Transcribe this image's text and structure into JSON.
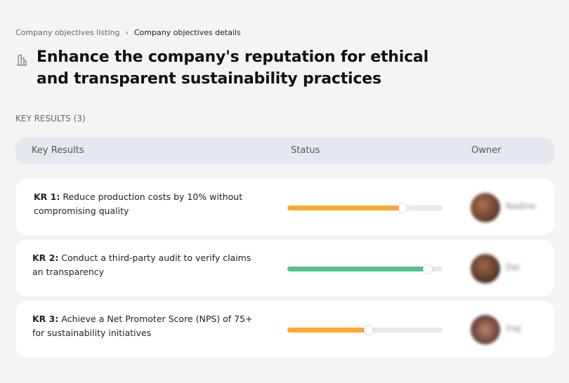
{
  "breadcrumb": {
    "parent": "Company objectives listing",
    "separator": "›",
    "current": "Company objectives details"
  },
  "title": "Enhance the company's reputation for ethical and transparent sustainability practices",
  "title_icon": "buildings-icon",
  "key_results_label": "KEY RESULTS (3)",
  "table": {
    "headers": [
      "Key Results",
      "Status",
      "Owner"
    ]
  },
  "colors": {
    "orange": "#FFA733",
    "green": "#55C58D"
  },
  "rows": [
    {
      "id": "KR 1:",
      "text": "Reduce production costs by 10% without compromising quality",
      "progress": 74,
      "color": "#FFA733",
      "owner": "Nadine"
    },
    {
      "id": "KR 2:",
      "text": "Conduct a third-party audit to verify claims an transparency",
      "progress": 90,
      "color": "#55C58D",
      "owner": "Dai"
    },
    {
      "id": "KR 3:",
      "text": "Achieve a Net Promoter Score (NPS) of 75+ for sustainability initiatives",
      "progress": 52,
      "color": "#FFA733",
      "owner": "Inaj"
    }
  ]
}
